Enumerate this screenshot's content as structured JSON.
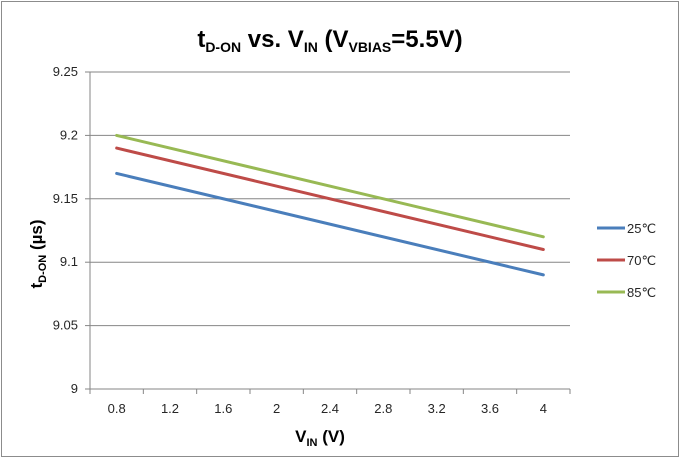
{
  "chart_data": {
    "type": "line",
    "title": {
      "main": "t",
      "main_sub": "D-ON",
      "mid": " vs. V",
      "mid_sub": "IN",
      "open": " (V",
      "open_sub": "VBIAS",
      "end": "=5.5V)"
    },
    "xlabel": {
      "main": "V",
      "sub": "IN",
      "unit": " (V)"
    },
    "ylabel": {
      "main": "t",
      "sub": "D-ON",
      "unit": " (µs)"
    },
    "x": [
      0.8,
      4.0
    ],
    "xticks": [
      "0.8",
      "1.2",
      "1.6",
      "2",
      "2.4",
      "2.8",
      "3.2",
      "3.6",
      "4"
    ],
    "ylim": [
      9.0,
      9.25
    ],
    "yticks": [
      "9",
      "9.05",
      "9.1",
      "9.15",
      "9.2",
      "9.25"
    ],
    "grid": "horizontal",
    "legend_position": "right",
    "series": [
      {
        "name": "25℃",
        "color": "#4a7ebb",
        "values": [
          9.17,
          9.09
        ]
      },
      {
        "name": "70℃",
        "color": "#be4b48",
        "values": [
          9.19,
          9.11
        ]
      },
      {
        "name": "85℃",
        "color": "#98b954",
        "values": [
          9.2,
          9.12
        ]
      }
    ]
  }
}
